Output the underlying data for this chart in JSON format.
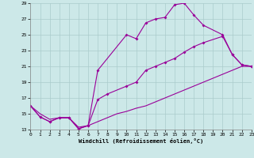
{
  "xlabel": "Windchill (Refroidissement éolien,°C)",
  "xlim": [
    0,
    23
  ],
  "ylim": [
    13,
    29
  ],
  "yticks": [
    13,
    15,
    17,
    19,
    21,
    23,
    25,
    27,
    29
  ],
  "xticks": [
    0,
    1,
    2,
    3,
    4,
    5,
    6,
    7,
    8,
    9,
    10,
    11,
    12,
    13,
    14,
    15,
    16,
    17,
    18,
    19,
    20,
    21,
    22,
    23
  ],
  "background_color": "#cce8e8",
  "grid_color": "#aacccc",
  "line_color": "#990099",
  "line1_x": [
    0,
    1,
    2,
    3,
    4,
    5,
    6,
    7,
    10,
    11,
    12,
    13,
    14,
    15,
    16,
    17,
    18,
    20,
    21,
    22,
    23
  ],
  "line1_y": [
    16.0,
    14.6,
    14.0,
    14.5,
    14.5,
    13.1,
    13.5,
    20.5,
    25.0,
    24.5,
    26.5,
    27.0,
    27.2,
    28.8,
    29.0,
    27.5,
    26.2,
    25.0,
    22.5,
    21.2,
    21.0
  ],
  "line2_x": [
    0,
    1,
    2,
    3,
    4,
    5,
    6,
    7,
    8,
    10,
    11,
    12,
    13,
    14,
    15,
    16,
    17,
    18,
    20,
    21,
    22,
    23
  ],
  "line2_y": [
    16.0,
    14.6,
    14.0,
    14.5,
    14.5,
    13.1,
    13.5,
    16.8,
    17.5,
    18.5,
    19.0,
    20.5,
    21.0,
    21.5,
    22.0,
    22.8,
    23.5,
    24.0,
    24.8,
    22.5,
    21.2,
    21.0
  ],
  "line3_x": [
    0,
    1,
    2,
    3,
    4,
    5,
    6,
    7,
    8,
    9,
    10,
    11,
    12,
    13,
    14,
    15,
    16,
    17,
    18,
    19,
    20,
    21,
    22,
    23
  ],
  "line3_y": [
    16.0,
    15.0,
    14.3,
    14.5,
    14.5,
    13.3,
    13.5,
    14.0,
    14.5,
    15.0,
    15.3,
    15.7,
    16.0,
    16.5,
    17.0,
    17.5,
    18.0,
    18.5,
    19.0,
    19.5,
    20.0,
    20.5,
    21.0,
    21.0
  ]
}
